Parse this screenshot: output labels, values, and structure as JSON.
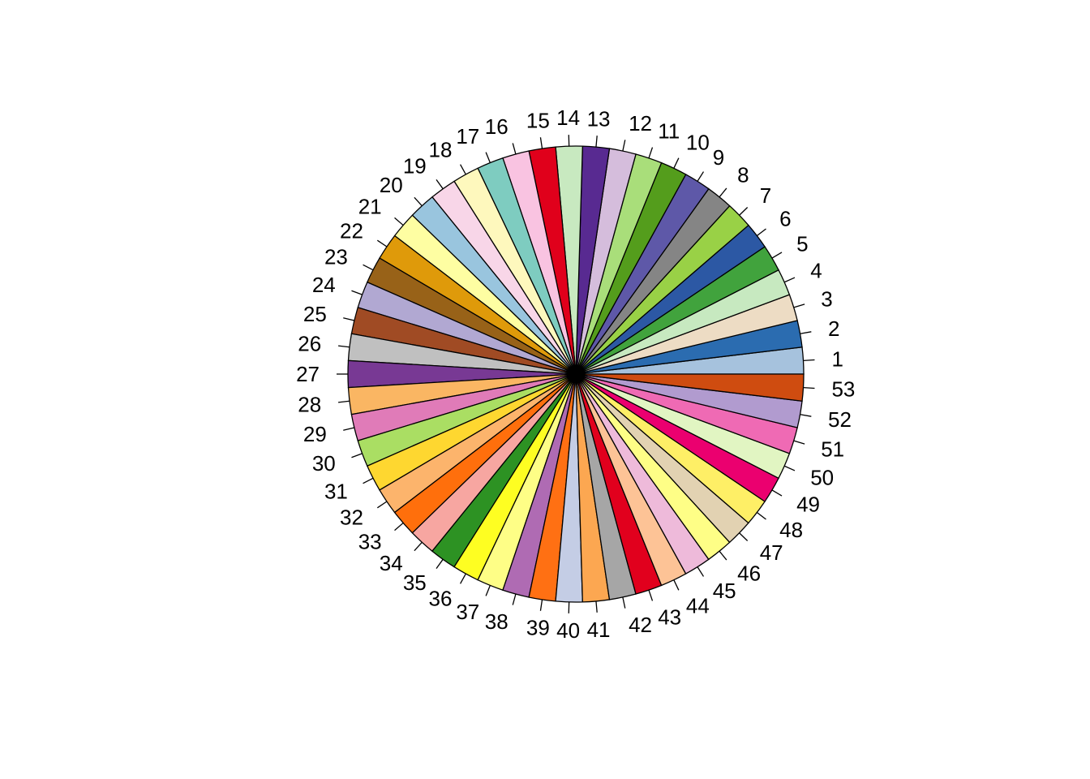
{
  "chart_data": {
    "type": "pie",
    "title": "",
    "direction": "counterclockwise",
    "start_angle_deg": 0,
    "labels": [
      "1",
      "2",
      "3",
      "4",
      "5",
      "6",
      "7",
      "8",
      "9",
      "10",
      "11",
      "12",
      "13",
      "14",
      "15",
      "16",
      "17",
      "18",
      "19",
      "20",
      "21",
      "22",
      "23",
      "24",
      "25",
      "26",
      "27",
      "28",
      "29",
      "30",
      "31",
      "32",
      "33",
      "34",
      "35",
      "36",
      "37",
      "38",
      "39",
      "40",
      "41",
      "42",
      "43",
      "44",
      "45",
      "46",
      "47",
      "48",
      "49",
      "50",
      "51",
      "52",
      "53"
    ],
    "values": [
      1,
      1,
      1,
      1,
      1,
      1,
      1,
      1,
      1,
      1,
      1,
      1,
      1,
      1,
      1,
      1,
      1,
      1,
      1,
      1,
      1,
      1,
      1,
      1,
      1,
      1,
      1,
      1,
      1,
      1,
      1,
      1,
      1,
      1,
      1,
      1,
      1,
      1,
      1,
      1,
      1,
      1,
      1,
      1,
      1,
      1,
      1,
      1,
      1,
      1,
      1,
      1,
      1
    ],
    "colors": [
      "#A6C2DD",
      "#2B6CB0",
      "#EDDCC4",
      "#C7E9C0",
      "#41A33D",
      "#2C58A4",
      "#99D146",
      "#858585",
      "#5E58A8",
      "#549D1C",
      "#A9DE7A",
      "#D5BDDC",
      "#582A91",
      "#C8E9C0",
      "#E0001B",
      "#F9C3E1",
      "#7ECCC0",
      "#FEF8BD",
      "#F8D6E8",
      "#99C5DE",
      "#FEFEA2",
      "#DF9A0A",
      "#986218",
      "#B1A8D2",
      "#A04B24",
      "#C0C0C0",
      "#783994",
      "#FAB663",
      "#E07BB8",
      "#AADE63",
      "#FED730",
      "#FCB46C",
      "#FF6F0C",
      "#F7A6A1",
      "#2D9223",
      "#FEFE22",
      "#FEFE86",
      "#AF6BB3",
      "#FF7013",
      "#C4CDE5",
      "#FCA751",
      "#A6A6A6",
      "#E1001D",
      "#FDC396",
      "#EEBADA",
      "#FEFE86",
      "#E2D2B2",
      "#FEEF66",
      "#EB006F",
      "#E1F5C2",
      "#EF6AB4",
      "#B19BCF",
      "#CF4C10"
    ]
  }
}
